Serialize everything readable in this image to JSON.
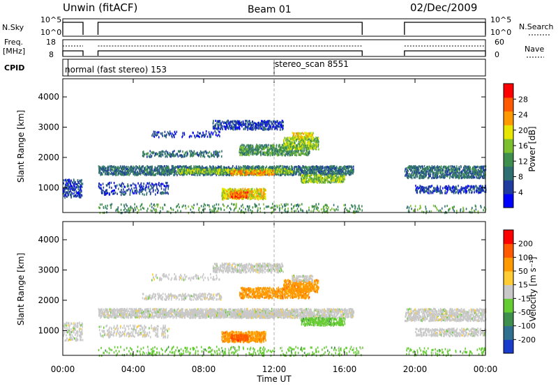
{
  "header": {
    "station": "Unwin (fitACF)",
    "beam": "Beam 01",
    "date": "02/Dec/2009"
  },
  "status_panels": {
    "nsky_label": "N.Sky",
    "nsky_ticks": [
      "10^5",
      "10^0"
    ],
    "nsearch_label": "N.Search",
    "nsearch_ticks": [
      "10^5",
      "10^0"
    ],
    "freq_label": "Freq.",
    "freq_unit": "[MHz]",
    "freq_ticks": [
      "18",
      "8"
    ],
    "nave_label": "Nave",
    "nave_ticks": [
      "60",
      "0"
    ],
    "cpid_label": "CPID",
    "cpid_programs": [
      {
        "start_hour": 0.3,
        "label": "normal (fast stereo) 153"
      },
      {
        "start_hour": 12.0,
        "label": "stereo_scan 8551"
      }
    ],
    "data_intervals_hours": [
      [
        0.0,
        1.15
      ],
      [
        2.0,
        17.0
      ],
      [
        19.4,
        24.0
      ]
    ]
  },
  "chart_data": [
    {
      "type": "heatmap",
      "name": "power",
      "ylabel": "Slant Range [km]",
      "xlabel": "",
      "ylim": [
        180,
        4600
      ],
      "xlim_hours": [
        0,
        24
      ],
      "yticks": [
        1000,
        2000,
        3000,
        4000
      ],
      "colorbar_label": "Power [dB]",
      "colorbar_ticks": [
        "28",
        "24",
        "20",
        "16",
        "12",
        "8",
        "4"
      ],
      "colorbar_range": [
        0,
        31
      ],
      "colors": [
        "#0000ff",
        "#1f3c9e",
        "#2f6f72",
        "#3e8e4e",
        "#7cc02f",
        "#e6e600",
        "#ff9900",
        "#ff5a00",
        "#ff0000"
      ]
    },
    {
      "type": "heatmap",
      "name": "velocity",
      "ylabel": "Slant Range [km]",
      "xlabel": "Time UT",
      "ylim": [
        180,
        4600
      ],
      "xlim_hours": [
        0,
        24
      ],
      "yticks": [
        1000,
        2000,
        3000,
        4000
      ],
      "xtick_labels": [
        "00:00",
        "04:00",
        "08:00",
        "12:00",
        "16:00",
        "20:00",
        "00:00"
      ],
      "colorbar_label": "Velocity [m s⁻¹]",
      "colorbar_ticks": [
        "200",
        "100",
        "50",
        "15",
        "-15",
        "-50",
        "-100",
        "-200"
      ],
      "colors": [
        "#1a3ccc",
        "#2f6f8f",
        "#3e8e4e",
        "#66cc33",
        "#c8c8c8",
        "#ffcc33",
        "#ff9900",
        "#ff5a00",
        "#ff0000"
      ]
    }
  ]
}
